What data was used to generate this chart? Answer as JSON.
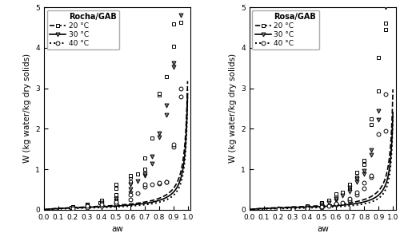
{
  "legend_title_a": "Rocha/GAB",
  "legend_title_b": "Rosa/GAB",
  "ylabel": "W (kg water/kg dry solids)",
  "xlabel": "aw",
  "ylim": [
    0,
    5
  ],
  "xlim": [
    0.0,
    1.02
  ],
  "xticks": [
    0.0,
    0.1,
    0.2,
    0.3,
    0.4,
    0.5,
    0.6,
    0.7,
    0.8,
    0.9,
    1.0
  ],
  "yticks": [
    0,
    1,
    2,
    3,
    4,
    5
  ],
  "gab_rocha_20": {
    "Wm": 0.062,
    "C": 8.0,
    "K": 0.982
  },
  "gab_rocha_30": {
    "Wm": 0.05,
    "C": 10.0,
    "K": 0.984
  },
  "gab_rocha_40": {
    "Wm": 0.04,
    "C": 7.0,
    "K": 0.988
  },
  "gab_rosa_20": {
    "Wm": 0.055,
    "C": 12.0,
    "K": 0.983
  },
  "gab_rosa_30": {
    "Wm": 0.042,
    "C": 15.0,
    "K": 0.984
  },
  "gab_rosa_40": {
    "Wm": 0.032,
    "C": 8.0,
    "K": 0.988
  },
  "data_rocha_20": [
    [
      0.19,
      0.05
    ],
    [
      0.2,
      0.07
    ],
    [
      0.3,
      0.09
    ],
    [
      0.3,
      0.13
    ],
    [
      0.39,
      0.17
    ],
    [
      0.4,
      0.2
    ],
    [
      0.4,
      0.24
    ],
    [
      0.5,
      0.28
    ],
    [
      0.5,
      0.37
    ],
    [
      0.5,
      0.52
    ],
    [
      0.5,
      0.62
    ],
    [
      0.6,
      0.69
    ],
    [
      0.6,
      0.8
    ],
    [
      0.6,
      0.85
    ],
    [
      0.65,
      0.88
    ],
    [
      0.7,
      1.0
    ],
    [
      0.7,
      1.27
    ],
    [
      0.75,
      1.76
    ],
    [
      0.8,
      2.83
    ],
    [
      0.8,
      2.87
    ],
    [
      0.85,
      3.28
    ],
    [
      0.9,
      4.04
    ],
    [
      0.9,
      4.59
    ],
    [
      0.95,
      4.62
    ]
  ],
  "data_rocha_30": [
    [
      0.2,
      0.04
    ],
    [
      0.3,
      0.07
    ],
    [
      0.3,
      0.11
    ],
    [
      0.4,
      0.14
    ],
    [
      0.4,
      0.18
    ],
    [
      0.5,
      0.21
    ],
    [
      0.5,
      0.28
    ],
    [
      0.6,
      0.41
    ],
    [
      0.6,
      0.51
    ],
    [
      0.6,
      0.62
    ],
    [
      0.65,
      0.7
    ],
    [
      0.7,
      0.85
    ],
    [
      0.7,
      0.89
    ],
    [
      0.75,
      1.13
    ],
    [
      0.75,
      1.31
    ],
    [
      0.8,
      1.78
    ],
    [
      0.8,
      1.89
    ],
    [
      0.85,
      2.34
    ],
    [
      0.85,
      2.58
    ],
    [
      0.9,
      3.52
    ],
    [
      0.9,
      3.62
    ],
    [
      0.95,
      4.8
    ]
  ],
  "data_rocha_40": [
    [
      0.2,
      0.04
    ],
    [
      0.3,
      0.06
    ],
    [
      0.3,
      0.09
    ],
    [
      0.4,
      0.1
    ],
    [
      0.4,
      0.13
    ],
    [
      0.5,
      0.16
    ],
    [
      0.5,
      0.2
    ],
    [
      0.6,
      0.25
    ],
    [
      0.6,
      0.37
    ],
    [
      0.65,
      0.41
    ],
    [
      0.7,
      0.56
    ],
    [
      0.7,
      0.62
    ],
    [
      0.75,
      0.63
    ],
    [
      0.8,
      0.65
    ],
    [
      0.8,
      0.66
    ],
    [
      0.85,
      0.68
    ],
    [
      0.85,
      0.69
    ],
    [
      0.9,
      1.56
    ],
    [
      0.9,
      1.62
    ],
    [
      0.95,
      2.8
    ],
    [
      0.95,
      3.0
    ]
  ],
  "data_rosa_20": [
    [
      0.2,
      0.01
    ],
    [
      0.2,
      0.01
    ],
    [
      0.3,
      0.02
    ],
    [
      0.3,
      0.04
    ],
    [
      0.4,
      0.08
    ],
    [
      0.4,
      0.1
    ],
    [
      0.5,
      0.16
    ],
    [
      0.5,
      0.18
    ],
    [
      0.55,
      0.24
    ],
    [
      0.6,
      0.35
    ],
    [
      0.6,
      0.38
    ],
    [
      0.65,
      0.42
    ],
    [
      0.7,
      0.52
    ],
    [
      0.7,
      0.62
    ],
    [
      0.75,
      0.8
    ],
    [
      0.75,
      0.93
    ],
    [
      0.8,
      1.11
    ],
    [
      0.8,
      1.21
    ],
    [
      0.85,
      2.1
    ],
    [
      0.85,
      2.24
    ],
    [
      0.9,
      2.94
    ],
    [
      0.9,
      3.75
    ],
    [
      0.95,
      4.45
    ],
    [
      0.95,
      4.61
    ]
  ],
  "data_rosa_30": [
    [
      0.2,
      0.01
    ],
    [
      0.3,
      0.01
    ],
    [
      0.3,
      0.03
    ],
    [
      0.4,
      0.05
    ],
    [
      0.4,
      0.06
    ],
    [
      0.5,
      0.09
    ],
    [
      0.5,
      0.13
    ],
    [
      0.55,
      0.17
    ],
    [
      0.6,
      0.23
    ],
    [
      0.6,
      0.28
    ],
    [
      0.65,
      0.34
    ],
    [
      0.7,
      0.45
    ],
    [
      0.7,
      0.55
    ],
    [
      0.75,
      0.68
    ],
    [
      0.75,
      0.76
    ],
    [
      0.8,
      0.89
    ],
    [
      0.8,
      0.97
    ],
    [
      0.85,
      1.35
    ],
    [
      0.85,
      1.48
    ],
    [
      0.9,
      2.23
    ],
    [
      0.9,
      2.44
    ],
    [
      0.95,
      5.0
    ]
  ],
  "data_rosa_40": [
    [
      0.2,
      0.01
    ],
    [
      0.3,
      0.01
    ],
    [
      0.3,
      0.01
    ],
    [
      0.4,
      0.03
    ],
    [
      0.4,
      0.04
    ],
    [
      0.5,
      0.06
    ],
    [
      0.5,
      0.08
    ],
    [
      0.55,
      0.1
    ],
    [
      0.6,
      0.13
    ],
    [
      0.6,
      0.16
    ],
    [
      0.65,
      0.18
    ],
    [
      0.7,
      0.24
    ],
    [
      0.7,
      0.28
    ],
    [
      0.75,
      0.37
    ],
    [
      0.75,
      0.42
    ],
    [
      0.8,
      0.52
    ],
    [
      0.8,
      0.66
    ],
    [
      0.85,
      0.8
    ],
    [
      0.85,
      0.85
    ],
    [
      0.9,
      1.86
    ],
    [
      0.95,
      1.94
    ],
    [
      0.95,
      2.86
    ]
  ],
  "linestyles": {
    "20": "--",
    "30": "-",
    "40": "dotted"
  },
  "linewidths": {
    "20": 1.2,
    "30": 1.2,
    "40": 1.4
  },
  "markers": {
    "20": "s",
    "30": "v",
    "40": "o"
  },
  "marker_fc": {
    "20": "white",
    "30": "#888888",
    "40": "white"
  },
  "markersize": 3.5,
  "legend_fontsize": 6.5,
  "tick_fontsize": 6.5,
  "label_fontsize": 7.5,
  "panel_label_fontsize": 8.5
}
